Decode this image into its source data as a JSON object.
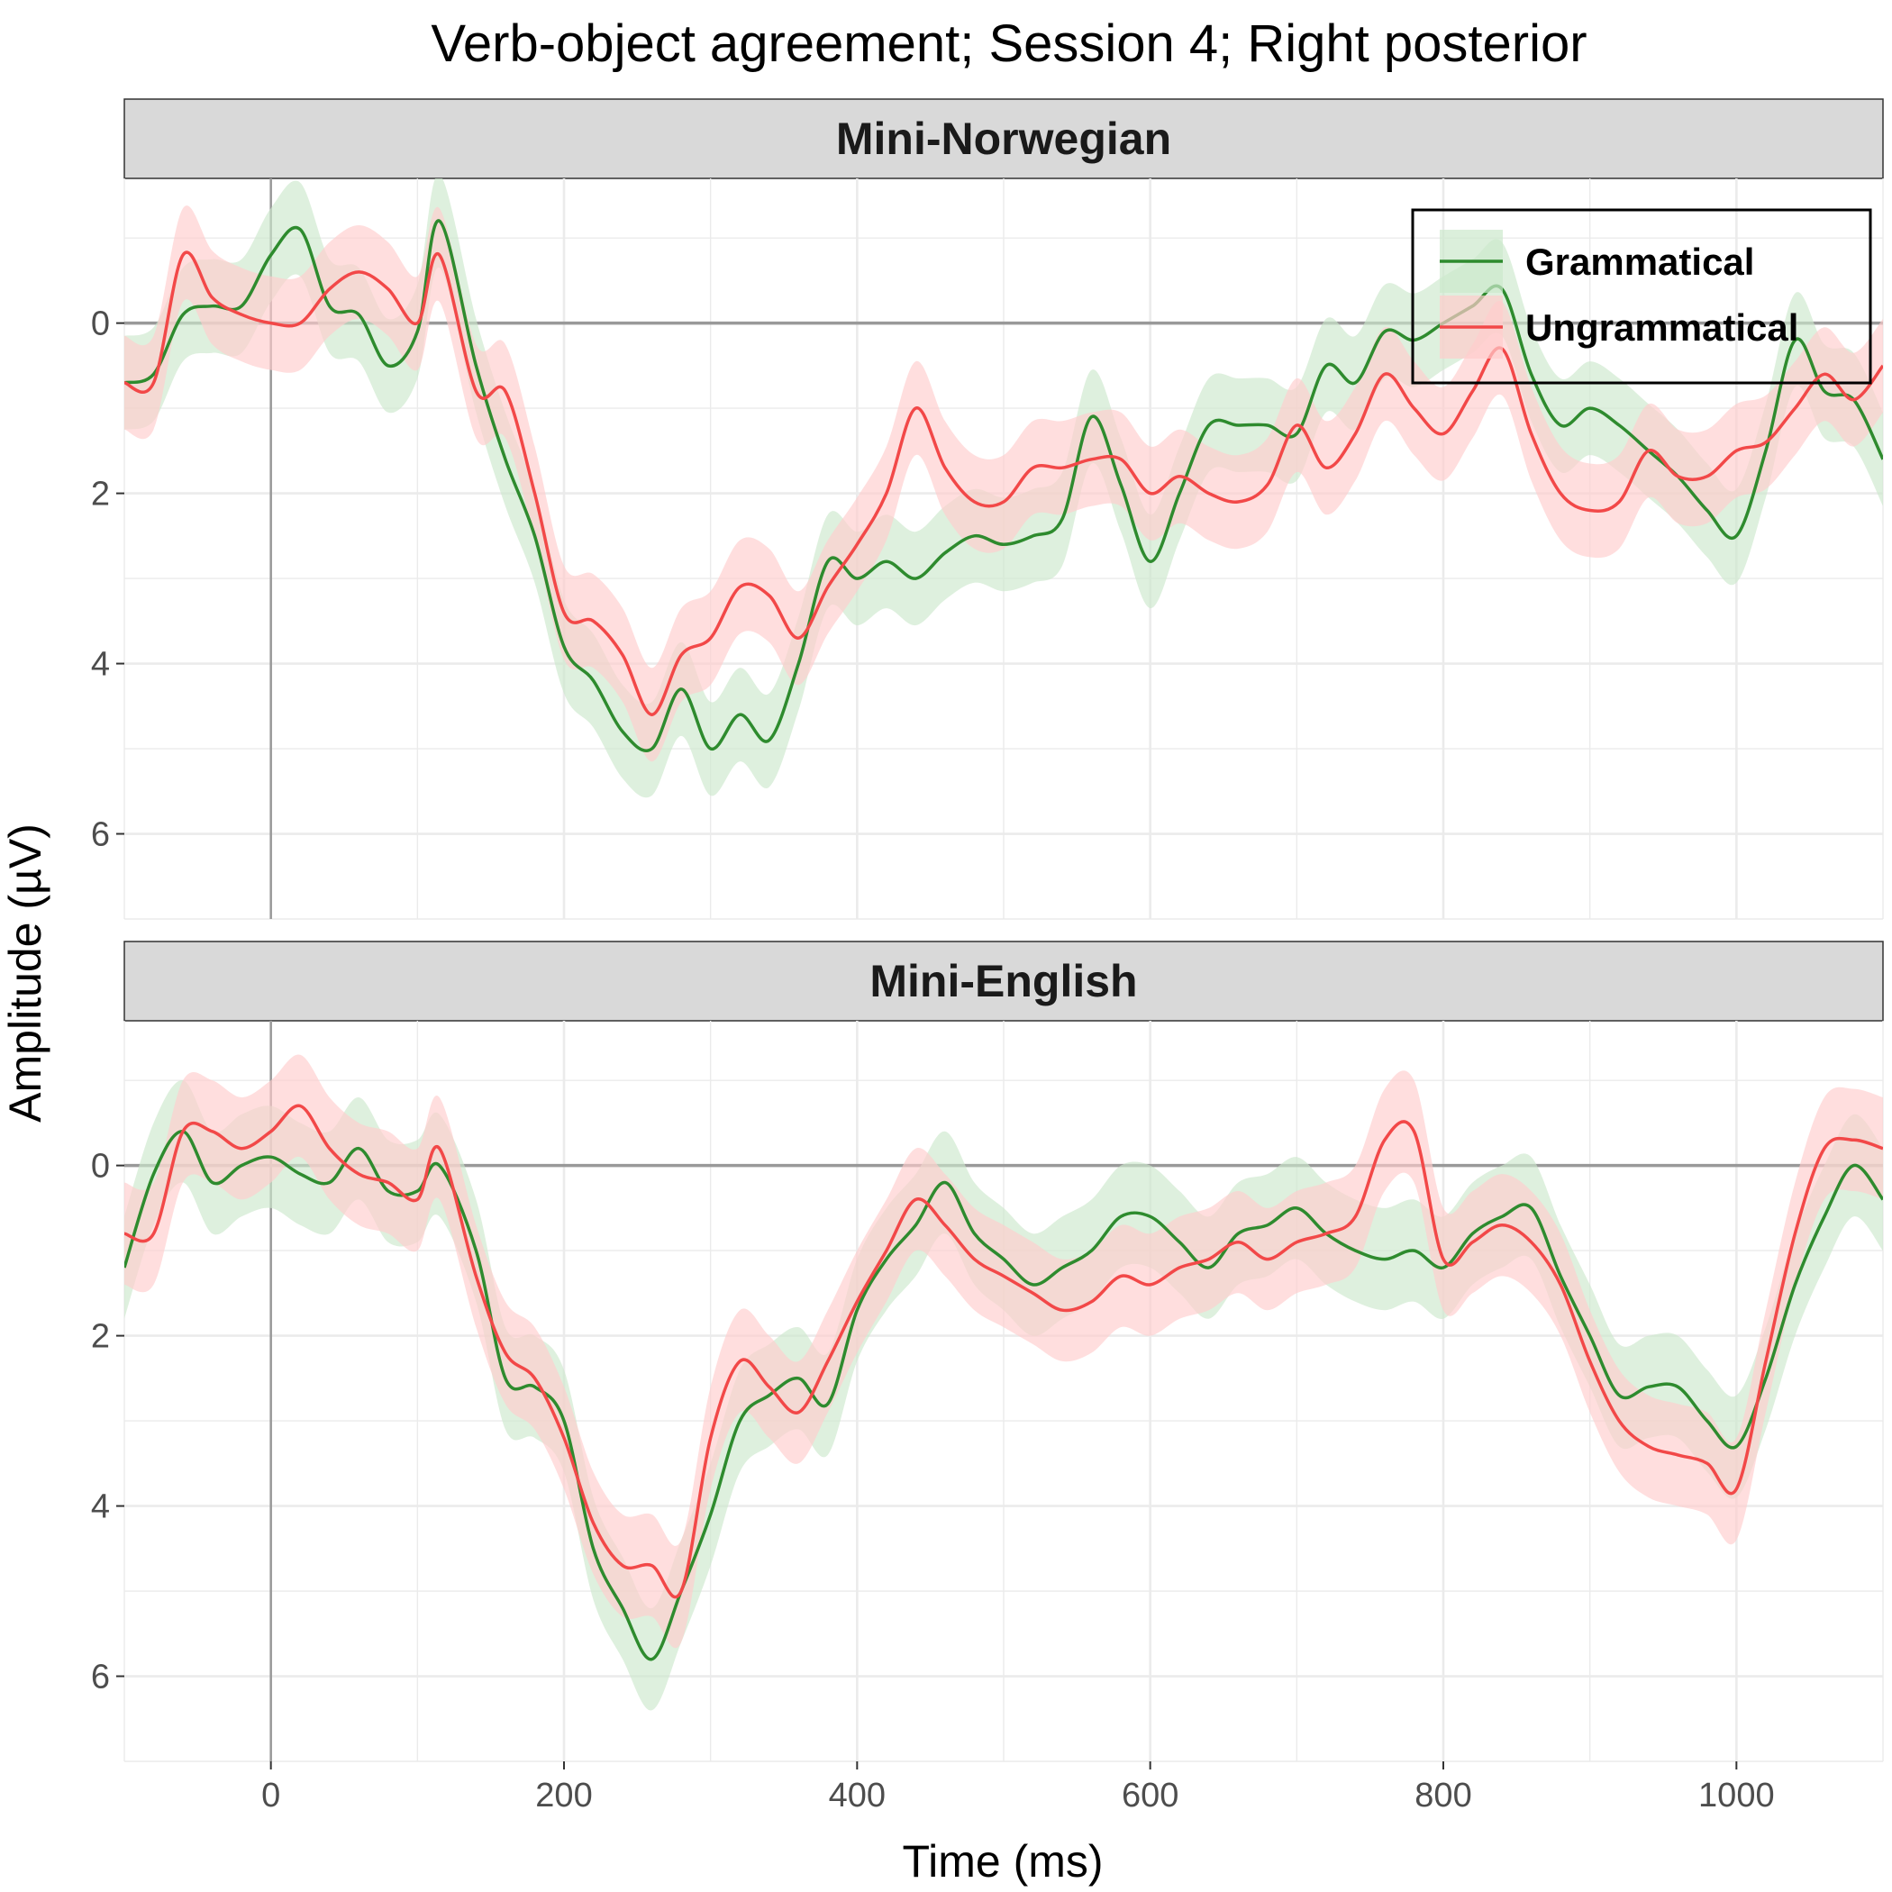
{
  "chart_data": {
    "type": "line",
    "title": "Verb-object agreement; Session 4; Right posterior",
    "xlabel": "Time (ms)",
    "ylabel": "Amplitude (µV)",
    "xlim": [
      -100,
      1100
    ],
    "ylim": [
      7,
      -1.7
    ],
    "y_reversed": true,
    "x_ticks": [
      0,
      200,
      400,
      600,
      800,
      1000
    ],
    "y_ticks": [
      0,
      2,
      4,
      6
    ],
    "grid": true,
    "legend": {
      "placement": "top-right",
      "panel": "Mini-Norwegian"
    },
    "series_styles": [
      {
        "name": "Grammatical",
        "line_color": "#2e8b2e",
        "ribbon_color": "#cce8cc"
      },
      {
        "name": "Ungrammatical",
        "line_color": "#f24848",
        "ribbon_color": "#ffcccc"
      }
    ],
    "panels": [
      {
        "strip": "Mini-Norwegian",
        "x": [
          -100,
          -80,
          -60,
          -40,
          -20,
          0,
          20,
          40,
          60,
          80,
          100,
          115,
          140,
          160,
          180,
          200,
          220,
          240,
          260,
          280,
          300,
          320,
          340,
          360,
          380,
          400,
          420,
          440,
          460,
          480,
          500,
          520,
          540,
          560,
          580,
          600,
          620,
          640,
          660,
          680,
          700,
          720,
          740,
          760,
          780,
          800,
          820,
          840,
          860,
          880,
          900,
          920,
          940,
          960,
          980,
          1000,
          1020,
          1040,
          1060,
          1080,
          1100
        ],
        "series": [
          {
            "name": "Grammatical",
            "values": [
              0.7,
              0.6,
              -0.1,
              -0.2,
              -0.2,
              -0.8,
              -1.1,
              -0.2,
              -0.1,
              0.5,
              0.1,
              -1.2,
              0.5,
              1.6,
              2.5,
              3.8,
              4.2,
              4.8,
              5.0,
              4.3,
              5.0,
              4.6,
              4.9,
              4.0,
              2.8,
              3.0,
              2.8,
              3.0,
              2.7,
              2.5,
              2.6,
              2.5,
              2.3,
              1.1,
              1.9,
              2.8,
              2.0,
              1.2,
              1.2,
              1.2,
              1.3,
              0.5,
              0.7,
              0.1,
              0.2,
              0.0,
              -0.2,
              -0.4,
              0.6,
              1.2,
              1.0,
              1.2,
              1.5,
              1.8,
              2.2,
              2.5,
              1.5,
              0.2,
              0.8,
              0.9,
              1.6
            ],
            "ci": 0.55
          },
          {
            "name": "Ungrammatical",
            "values": [
              0.7,
              0.7,
              -0.8,
              -0.3,
              -0.1,
              0.0,
              0.0,
              -0.4,
              -0.6,
              -0.4,
              0.0,
              -0.8,
              0.8,
              0.8,
              2.0,
              3.4,
              3.5,
              3.9,
              4.6,
              3.9,
              3.7,
              3.1,
              3.2,
              3.7,
              3.1,
              2.6,
              2.0,
              1.0,
              1.7,
              2.1,
              2.1,
              1.7,
              1.7,
              1.6,
              1.6,
              2.0,
              1.8,
              2.0,
              2.1,
              1.9,
              1.2,
              1.7,
              1.3,
              0.6,
              1.0,
              1.3,
              0.8,
              0.3,
              1.3,
              2.0,
              2.2,
              2.1,
              1.5,
              1.8,
              1.8,
              1.5,
              1.4,
              1.0,
              0.6,
              0.9,
              0.5
            ],
            "ci": 0.55
          }
        ]
      },
      {
        "strip": "Mini-English",
        "x": [
          -100,
          -80,
          -60,
          -40,
          -20,
          0,
          20,
          40,
          60,
          80,
          100,
          115,
          140,
          160,
          180,
          200,
          220,
          240,
          260,
          280,
          300,
          320,
          340,
          360,
          380,
          400,
          420,
          440,
          460,
          480,
          500,
          520,
          540,
          560,
          580,
          600,
          620,
          640,
          660,
          680,
          700,
          720,
          740,
          760,
          780,
          800,
          820,
          840,
          860,
          880,
          900,
          920,
          940,
          960,
          980,
          1000,
          1020,
          1040,
          1060,
          1080,
          1100
        ],
        "series": [
          {
            "name": "Grammatical",
            "values": [
              1.2,
              0.1,
              -0.4,
              0.2,
              0.0,
              -0.1,
              0.1,
              0.2,
              -0.2,
              0.3,
              0.3,
              0.0,
              1.0,
              2.5,
              2.6,
              3.0,
              4.5,
              5.2,
              5.8,
              5.0,
              4.1,
              3.0,
              2.7,
              2.5,
              2.8,
              1.7,
              1.1,
              0.7,
              0.2,
              0.8,
              1.1,
              1.4,
              1.2,
              1.0,
              0.6,
              0.6,
              0.9,
              1.2,
              0.8,
              0.7,
              0.5,
              0.8,
              1.0,
              1.1,
              1.0,
              1.2,
              0.8,
              0.6,
              0.5,
              1.3,
              2.0,
              2.7,
              2.6,
              2.6,
              3.0,
              3.3,
              2.5,
              1.4,
              0.6,
              0.0,
              0.4
            ],
            "ci": 0.6
          },
          {
            "name": "Ungrammatical",
            "values": [
              0.8,
              0.8,
              -0.4,
              -0.4,
              -0.2,
              -0.4,
              -0.7,
              -0.2,
              0.1,
              0.2,
              0.4,
              -0.2,
              1.3,
              2.2,
              2.5,
              3.2,
              4.2,
              4.7,
              4.7,
              5.0,
              3.2,
              2.3,
              2.6,
              2.9,
              2.3,
              1.6,
              1.0,
              0.4,
              0.7,
              1.1,
              1.3,
              1.5,
              1.7,
              1.6,
              1.3,
              1.4,
              1.2,
              1.1,
              0.9,
              1.1,
              0.9,
              0.8,
              0.6,
              -0.3,
              -0.4,
              1.1,
              0.9,
              0.7,
              0.9,
              1.4,
              2.3,
              3.0,
              3.3,
              3.4,
              3.5,
              3.8,
              2.3,
              0.8,
              -0.2,
              -0.3,
              -0.2
            ],
            "ci": 0.6
          }
        ]
      }
    ]
  }
}
